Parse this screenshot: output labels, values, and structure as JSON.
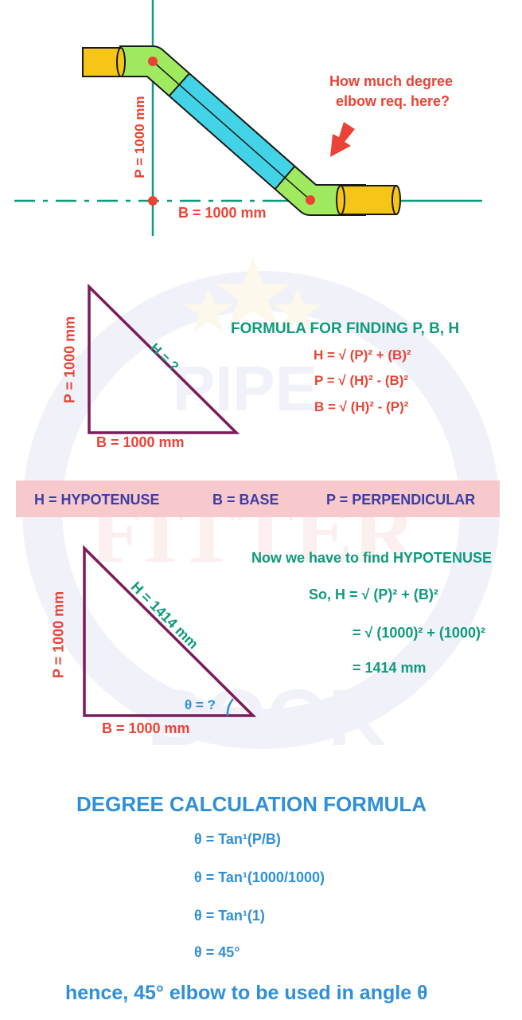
{
  "pipe_diagram": {
    "question": [
      "How much degree",
      "elbow req. here?"
    ],
    "p_label": "P = 1000 mm",
    "b_label": "B = 1000 mm"
  },
  "triangle1": {
    "p_label": "P = 1000 mm",
    "b_label": "B = 1000 mm",
    "h_label": "H = ?"
  },
  "formulas": {
    "title": "FORMULA FOR FINDING P, B, H",
    "h": "H = √ (P)² + (B)²",
    "p": "P = √ (H)² - (B)²",
    "b": "B = √ (H)² - (P)²"
  },
  "legend": {
    "h": "H = HYPOTENUSE",
    "b": "B = BASE",
    "p": "P = PERPENDICULAR"
  },
  "triangle2": {
    "p_label": "P = 1000 mm",
    "b_label": "B = 1000 mm",
    "h_label": "H = 1414 mm",
    "theta_label": "θ = ?"
  },
  "hypotenuse": {
    "intro": "Now we have to find HYPOTENUSE",
    "step1": "So, H = √ (P)² + (B)²",
    "step2": "= √ (1000)² + (1000)²",
    "step3": "= 1414 mm"
  },
  "degree": {
    "title": "DEGREE CALCULATION FORMULA",
    "step1": "θ = Tan¹(P/B)",
    "step2": "θ = Tan¹(1000/1000)",
    "step3": "θ = Tan¹(1)",
    "step4": "θ = 45°",
    "conclusion": "hence, 45° elbow to be used in angle θ"
  },
  "watermark": [
    "PIPE",
    "FITTER",
    "BOOK"
  ],
  "colors": {
    "red": "#ea4335",
    "green": "#0f9a7d",
    "blue": "#2f8fd8",
    "navy": "#3a3ea6",
    "maroon": "#7b1b5a",
    "pipe_cyan": "#42d4e6",
    "elbow_green": "#9fea5f",
    "pipe_end_yellow": "#f5c518",
    "legend_bg": "#f7c8cc"
  }
}
